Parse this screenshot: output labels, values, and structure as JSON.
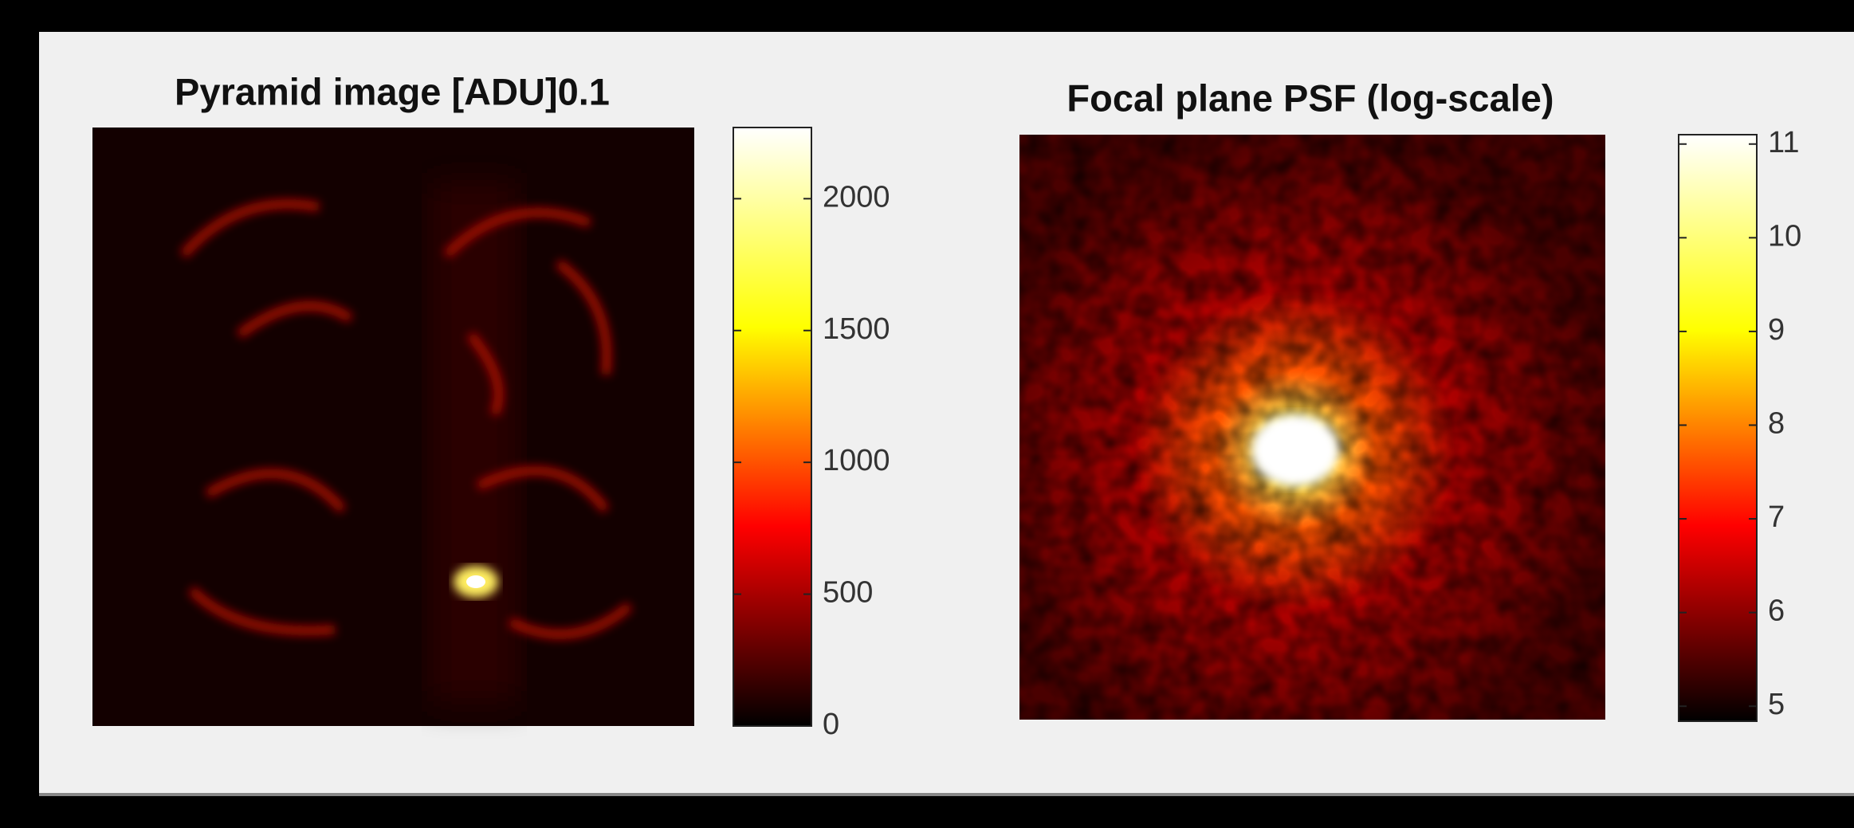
{
  "chart_data": [
    {
      "type": "image",
      "title": "Pyramid image [ADU]0.1",
      "colormap": [
        "#000000",
        "#ff0000",
        "#ffff00",
        "#ffffff"
      ],
      "clim": [
        0,
        2270
      ],
      "cticks": [
        0,
        500,
        1000,
        1500,
        2000
      ]
    },
    {
      "type": "image",
      "title": "Focal plane PSF (log-scale)",
      "colormap": [
        "#000000",
        "#ff0000",
        "#ffff00",
        "#ffffff"
      ],
      "clim": [
        4.84,
        11.1
      ],
      "cticks": [
        5,
        6,
        7,
        8,
        9,
        10,
        11
      ]
    }
  ]
}
